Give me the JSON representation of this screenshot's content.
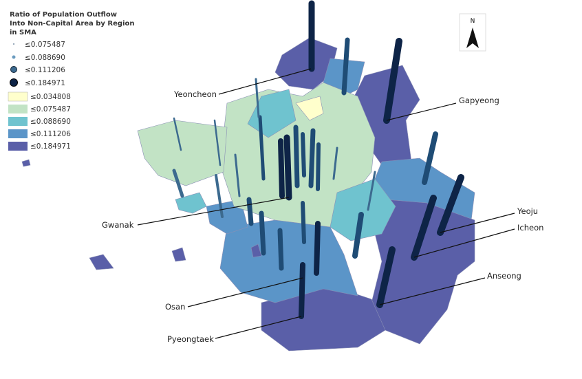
{
  "legend": {
    "title_lines": [
      "Ratio of Population  Outflow",
      "Into Non-Capital  Area by Region",
      "in SMA"
    ],
    "bar_classes": [
      "≤0.075487",
      "≤0.088690",
      "≤0.111206",
      "≤0.184971"
    ],
    "fill_classes": [
      "≤0.034808",
      "≤0.075487",
      "≤0.088690",
      "≤0.111206",
      "≤0.184971"
    ]
  },
  "north_label": "N",
  "region_labels": [
    "Yeoncheon",
    "Gapyeong",
    "Gwanak",
    "Yeoju",
    "Icheon",
    "Anseong",
    "Osan",
    "Pyeongtaek"
  ]
}
